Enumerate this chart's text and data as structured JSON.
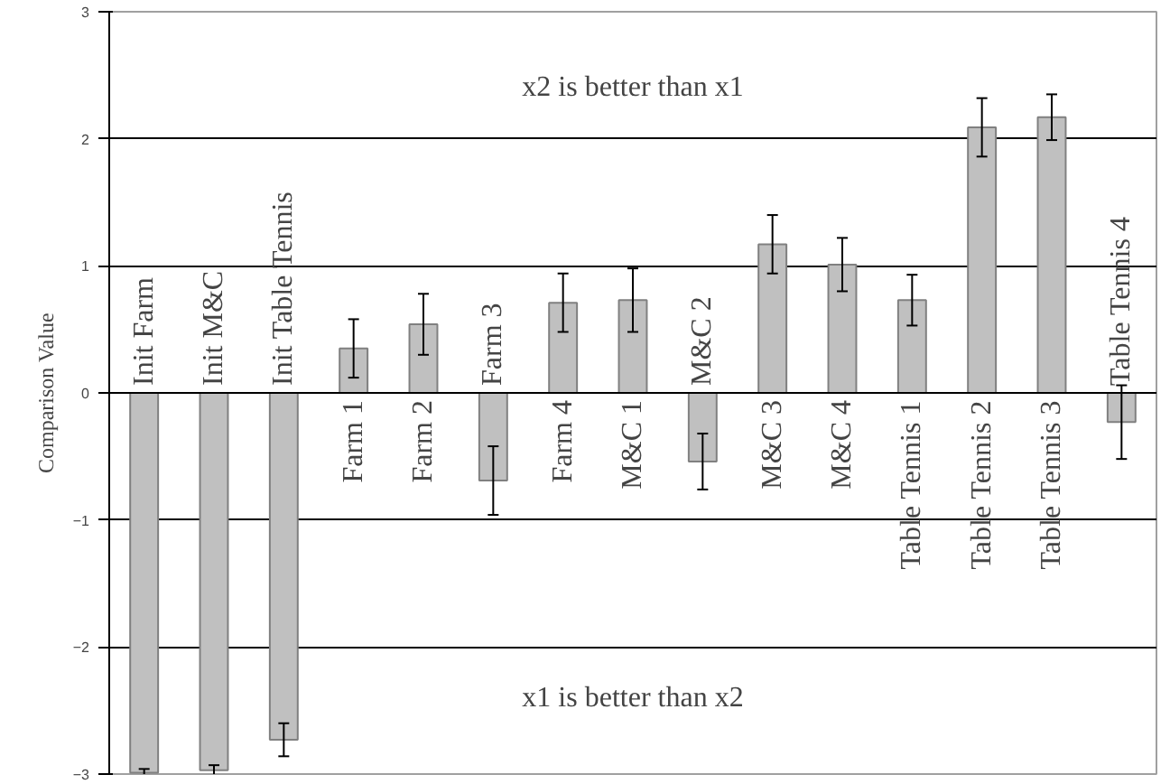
{
  "chart_data": {
    "type": "bar",
    "ylabel": "Comparison Value",
    "categories": [
      "Init Farm",
      "Init M&C",
      "Init Table Tennis",
      "Farm 1",
      "Farm 2",
      "Farm 3",
      "Farm 4",
      "M&C 1",
      "M&C 2",
      "M&C 3",
      "M&C 4",
      "Table Tennis 1",
      "Table Tennis 2",
      "Table Tennis 3",
      "Table Tennis 4"
    ],
    "values": [
      -2.99,
      -2.97,
      -2.73,
      0.35,
      0.54,
      -0.69,
      0.71,
      0.73,
      -0.54,
      1.17,
      1.01,
      0.73,
      2.09,
      2.17,
      -0.23
    ],
    "errors": [
      0.03,
      0.04,
      0.13,
      0.23,
      0.24,
      0.27,
      0.23,
      0.25,
      0.22,
      0.23,
      0.21,
      0.2,
      0.23,
      0.18,
      0.29
    ],
    "color": "#c0c0c0",
    "ylim": [
      -3,
      3
    ],
    "yticks": [
      -3,
      -2,
      -1,
      0,
      1,
      2,
      3
    ],
    "grid": "y",
    "annotations": [
      "x2 is better than x1",
      "x1 is better than x2"
    ]
  }
}
